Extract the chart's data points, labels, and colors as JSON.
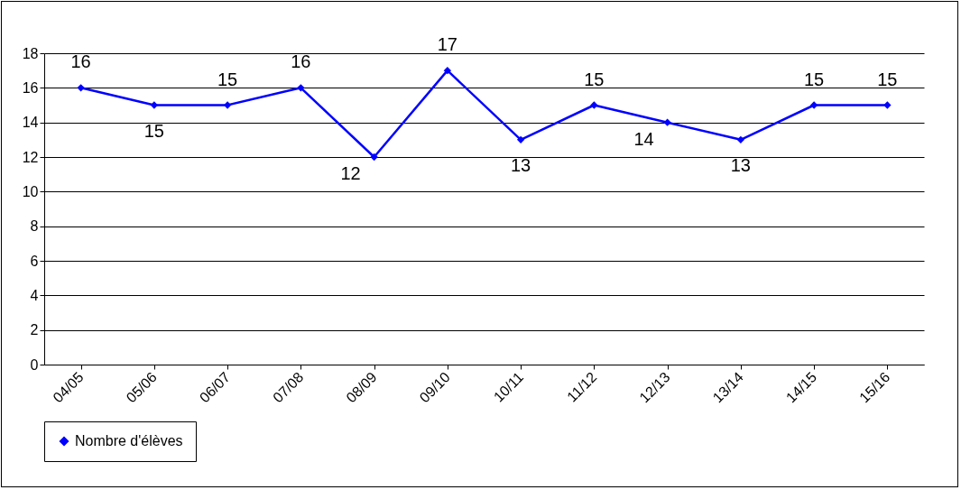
{
  "chart_data": {
    "type": "line",
    "categories": [
      "04/05",
      "05/06",
      "06/07",
      "07/08",
      "08/09",
      "09/10",
      "10/11",
      "11/12",
      "12/13",
      "13/14",
      "14/15",
      "15/16"
    ],
    "series": [
      {
        "name": "Nombre d'élèves",
        "color": "#0000ff",
        "values": [
          16,
          15,
          15,
          16,
          12,
          17,
          13,
          15,
          14,
          13,
          15,
          15
        ]
      }
    ],
    "ylim": [
      0,
      18
    ],
    "yticks": [
      0,
      2,
      4,
      6,
      8,
      10,
      12,
      14,
      16,
      18
    ],
    "grid": "y",
    "legend": "bottom",
    "marker": "diamond",
    "line_style": "solid",
    "data_labels": true
  }
}
